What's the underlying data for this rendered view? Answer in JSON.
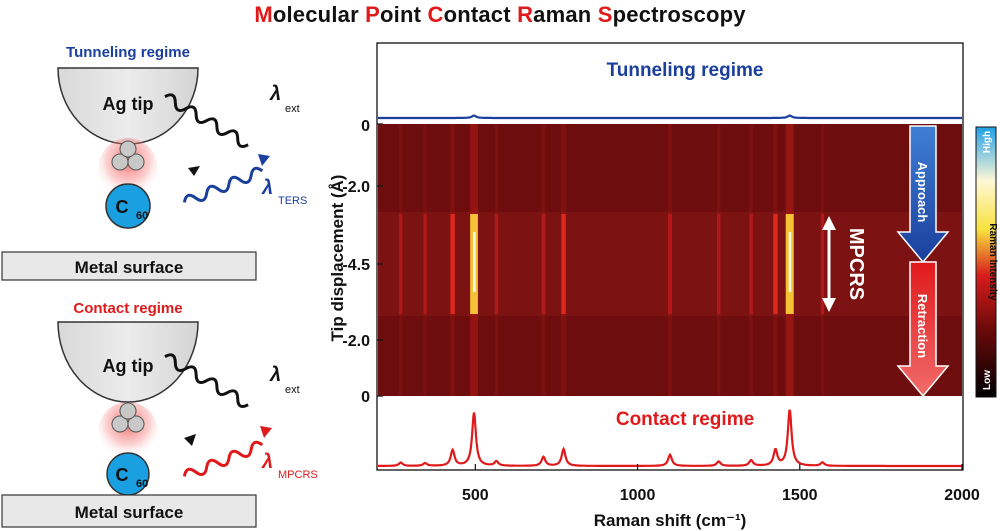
{
  "title": {
    "words": [
      {
        "initial": "M",
        "rest": "olecular"
      },
      {
        "initial": "P",
        "rest": "oint"
      },
      {
        "initial": "C",
        "rest": "ontact"
      },
      {
        "initial": "R",
        "rest": "aman"
      },
      {
        "initial": "S",
        "rest": "pectroscopy"
      }
    ]
  },
  "schematics": {
    "tunneling": {
      "heading": "Tunneling regime",
      "tip_label": "Ag tip",
      "molecule_label": "C",
      "molecule_sub": "60",
      "surface_label": "Metal surface",
      "lambda_in": "λ",
      "lambda_in_sub": "ext",
      "lambda_out": "λ",
      "lambda_out_sub": "TERS"
    },
    "contact": {
      "heading": "Contact regime",
      "tip_label": "Ag tip",
      "molecule_label": "C",
      "molecule_sub": "60",
      "surface_label": "Metal surface",
      "lambda_in": "λ",
      "lambda_in_sub": "ext",
      "lambda_out": "λ",
      "lambda_out_sub": "MPCRS"
    }
  },
  "colors": {
    "tunneling": "#1a3f9c",
    "contact": "#e0191b",
    "molecule": "#1a9fe0",
    "tip_glow": "#f08a8a"
  },
  "chart_data": {
    "type": "heatmap",
    "xlabel": "Raman shift (cm⁻¹)",
    "ylabel": "Tip displacement (Å)",
    "x_ticks": [
      "500",
      "1000",
      "1500",
      "2000"
    ],
    "x_tick_values": [
      500,
      1000,
      1500,
      2000
    ],
    "xlim": [
      200,
      2000
    ],
    "y_ticks": [
      "0",
      "-2.0",
      "-4.5",
      "-2.0",
      "0"
    ],
    "top_spectrum_label": "Tunneling regime",
    "bottom_spectrum_label": "Contact regime",
    "mpcrs_label": "MPCRS",
    "approach_label": "Approach",
    "retraction_label": "Retraction",
    "colorbar": {
      "high": "High",
      "low": "Low",
      "label": "Raman intensity"
    },
    "peaks": [
      {
        "x": 270,
        "intensity": 0.06
      },
      {
        "x": 345,
        "intensity": 0.05
      },
      {
        "x": 430,
        "intensity": 0.28
      },
      {
        "x": 496,
        "intensity": 0.95
      },
      {
        "x": 565,
        "intensity": 0.08
      },
      {
        "x": 710,
        "intensity": 0.16
      },
      {
        "x": 772,
        "intensity": 0.3
      },
      {
        "x": 1100,
        "intensity": 0.2
      },
      {
        "x": 1250,
        "intensity": 0.08
      },
      {
        "x": 1350,
        "intensity": 0.1
      },
      {
        "x": 1425,
        "intensity": 0.28
      },
      {
        "x": 1469,
        "intensity": 1.0
      },
      {
        "x": 1570,
        "intensity": 0.06
      }
    ],
    "tunneling_peaks": [
      {
        "x": 496,
        "intensity": 0.4
      },
      {
        "x": 1469,
        "intensity": 0.4
      }
    ]
  }
}
